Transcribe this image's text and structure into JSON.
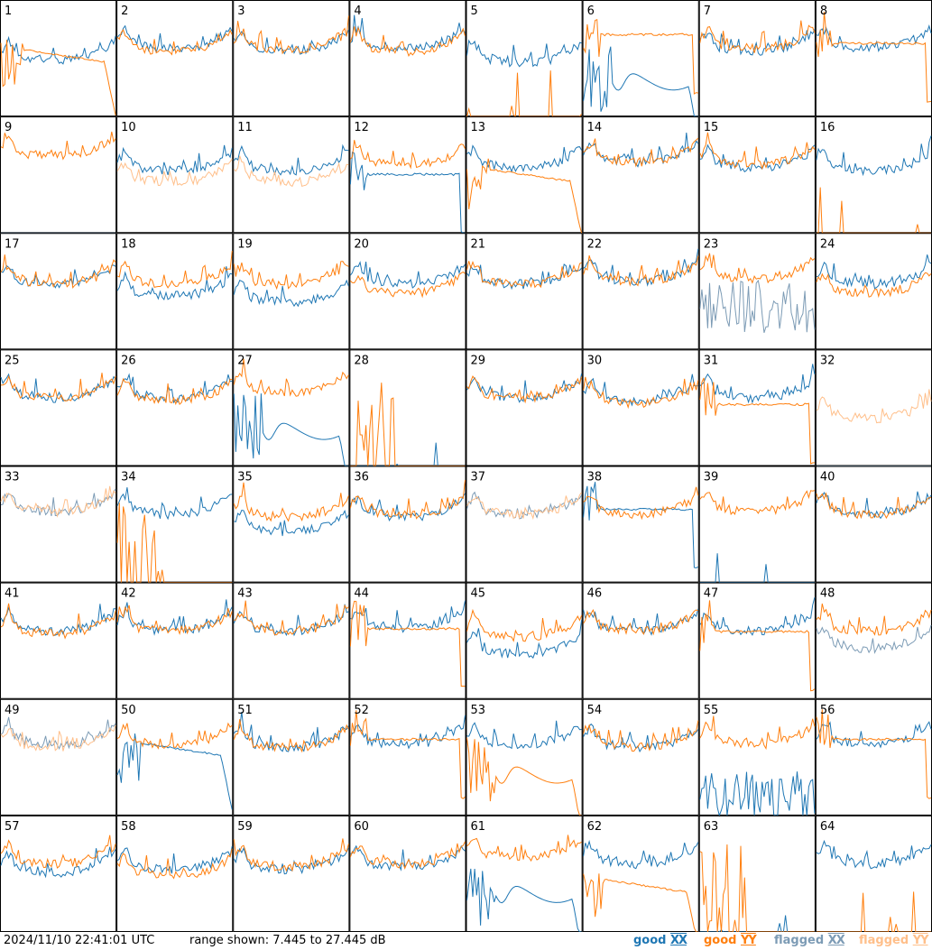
{
  "footer": {
    "timestamp": "2024/11/10 22:41:01 UTC",
    "range": "range shown: 7.445 to 27.445 dB"
  },
  "legend": [
    {
      "label": "good",
      "pol": "XX",
      "color": "#1f77b4"
    },
    {
      "label": "good",
      "pol": "YY",
      "color": "#ff7f0e"
    },
    {
      "label": "flagged",
      "pol": "XX",
      "color": "#7c9bb5"
    },
    {
      "label": "flagged",
      "pol": "YY",
      "color": "#ffbf8a"
    }
  ],
  "colors": {
    "good_xx": "#1f77b4",
    "good_yy": "#ff7f0e",
    "flagged_xx": "#7c9bb5",
    "flagged_yy": "#ffbf8a",
    "grid": "#000000"
  },
  "chart_data": {
    "type": "line",
    "xlabel": "",
    "ylabel": "",
    "ylim_db": [
      7.445,
      27.445
    ],
    "layout": "8x8 small multiples",
    "x_points": 60,
    "x_note": "channel index 0-59 (no axis labels printed)",
    "panels": [
      {
        "id": 1,
        "xx": {
          "s": "standard",
          "level": 18.5
        },
        "yy": {
          "s": "decay",
          "level": 16.5,
          "flagged": false
        }
      },
      {
        "id": 2,
        "xx": {
          "s": "standard",
          "level": 20.5
        },
        "yy": {
          "s": "standard",
          "level": 20.0
        }
      },
      {
        "id": 3,
        "xx": {
          "s": "standard",
          "level": 20.0
        },
        "yy": {
          "s": "standard",
          "level": 20.2
        }
      },
      {
        "id": 4,
        "xx": {
          "s": "standard",
          "level": 20.5
        },
        "yy": {
          "s": "standard",
          "level": 20.0
        }
      },
      {
        "id": 5,
        "xx": {
          "s": "standard",
          "level": 18.0
        },
        "yy": {
          "s": "dead",
          "level": 7.5
        }
      },
      {
        "id": 6,
        "xx": {
          "s": "dip",
          "level": 14.0
        },
        "yy": {
          "s": "flat",
          "level": 21.5
        }
      },
      {
        "id": 7,
        "xx": {
          "s": "standard",
          "level": 20.0
        },
        "yy": {
          "s": "standard",
          "level": 20.5
        }
      },
      {
        "id": 8,
        "xx": {
          "s": "standard",
          "level": 20.5
        },
        "yy": {
          "s": "flat",
          "level": 20.0
        }
      },
      {
        "id": 9,
        "xx": {
          "s": "dead",
          "level": 7.5,
          "flagged": true
        },
        "yy": {
          "s": "standard",
          "level": 22.0
        }
      },
      {
        "id": 10,
        "xx": {
          "s": "standard",
          "level": 19.5
        },
        "yy": {
          "s": "standard",
          "level": 17.5,
          "flagged": true
        }
      },
      {
        "id": 11,
        "xx": {
          "s": "standard",
          "level": 19.5
        },
        "yy": {
          "s": "standard",
          "level": 17.5,
          "flagged": true
        }
      },
      {
        "id": 12,
        "xx": {
          "s": "flat",
          "level": 17.5
        },
        "yy": {
          "s": "standard",
          "level": 20.5
        }
      },
      {
        "id": 13,
        "xx": {
          "s": "standard",
          "level": 20.0
        },
        "yy": {
          "s": "decay",
          "level": 16.0
        }
      },
      {
        "id": 14,
        "xx": {
          "s": "standard",
          "level": 21.0
        },
        "yy": {
          "s": "standard",
          "level": 21.0
        }
      },
      {
        "id": 15,
        "xx": {
          "s": "standard",
          "level": 20.0
        },
        "yy": {
          "s": "standard",
          "level": 20.5
        }
      },
      {
        "id": 16,
        "xx": {
          "s": "standard",
          "level": 19.5
        },
        "yy": {
          "s": "dead",
          "level": 7.5
        }
      },
      {
        "id": 17,
        "xx": {
          "s": "standard",
          "level": 20.0
        },
        "yy": {
          "s": "standard",
          "level": 20.0
        }
      },
      {
        "id": 18,
        "xx": {
          "s": "standard",
          "level": 18.0
        },
        "yy": {
          "s": "standard",
          "level": 20.0
        }
      },
      {
        "id": 19,
        "xx": {
          "s": "standard",
          "level": 17.0
        },
        "yy": {
          "s": "standard",
          "level": 20.0
        }
      },
      {
        "id": 20,
        "xx": {
          "s": "standard",
          "level": 20.0
        },
        "yy": {
          "s": "standard",
          "level": 18.5
        }
      },
      {
        "id": 21,
        "xx": {
          "s": "standard",
          "level": 20.0
        },
        "yy": {
          "s": "standard",
          "level": 20.0
        }
      },
      {
        "id": 22,
        "xx": {
          "s": "standard",
          "level": 20.5
        },
        "yy": {
          "s": "standard",
          "level": 20.5
        }
      },
      {
        "id": 23,
        "xx": {
          "s": "noisy",
          "level": 13.0,
          "flagged": true
        },
        "yy": {
          "s": "standard",
          "level": 21.0
        }
      },
      {
        "id": 24,
        "xx": {
          "s": "standard",
          "level": 20.0
        },
        "yy": {
          "s": "standard",
          "level": 18.5
        }
      },
      {
        "id": 25,
        "xx": {
          "s": "standard",
          "level": 20.5
        },
        "yy": {
          "s": "standard",
          "level": 20.5
        }
      },
      {
        "id": 26,
        "xx": {
          "s": "standard",
          "level": 20.5
        },
        "yy": {
          "s": "standard",
          "level": 20.0
        }
      },
      {
        "id": 27,
        "xx": {
          "s": "dip",
          "level": 14.0
        },
        "yy": {
          "s": "standard",
          "level": 21.5
        }
      },
      {
        "id": 28,
        "xx": {
          "s": "dead",
          "level": 7.5
        },
        "yy": {
          "s": "spiky",
          "level": 10.0
        }
      },
      {
        "id": 29,
        "xx": {
          "s": "standard",
          "level": 20.5
        },
        "yy": {
          "s": "standard",
          "level": 20.5
        }
      },
      {
        "id": 30,
        "xx": {
          "s": "standard",
          "level": 20.0
        },
        "yy": {
          "s": "standard",
          "level": 19.5
        }
      },
      {
        "id": 31,
        "xx": {
          "s": "standard",
          "level": 20.5
        },
        "yy": {
          "s": "flat",
          "level": 18.0
        }
      },
      {
        "id": 32,
        "xx": {
          "s": "dead",
          "level": 7.5,
          "flagged": true
        },
        "yy": {
          "s": "standard",
          "level": 17.0,
          "flagged": true
        }
      },
      {
        "id": 33,
        "xx": {
          "s": "standard",
          "level": 21.0,
          "flagged": true
        },
        "yy": {
          "s": "standard",
          "level": 21.0,
          "flagged": true
        }
      },
      {
        "id": 34,
        "xx": {
          "s": "standard",
          "level": 20.5
        },
        "yy": {
          "s": "spiky",
          "level": 9.0
        }
      },
      {
        "id": 35,
        "xx": {
          "s": "standard",
          "level": 17.5
        },
        "yy": {
          "s": "standard",
          "level": 20.0
        }
      },
      {
        "id": 36,
        "xx": {
          "s": "standard",
          "level": 20.0
        },
        "yy": {
          "s": "standard",
          "level": 20.5
        }
      },
      {
        "id": 37,
        "xx": {
          "s": "standard",
          "level": 20.5,
          "flagged": true
        },
        "yy": {
          "s": "standard",
          "level": 20.5,
          "flagged": true
        }
      },
      {
        "id": 38,
        "xx": {
          "s": "flat",
          "level": 20.0
        },
        "yy": {
          "s": "standard",
          "level": 20.5
        }
      },
      {
        "id": 39,
        "xx": {
          "s": "dead",
          "level": 7.5
        },
        "yy": {
          "s": "standard",
          "level": 21.0
        }
      },
      {
        "id": 40,
        "xx": {
          "s": "standard",
          "level": 20.5
        },
        "yy": {
          "s": "standard",
          "level": 20.5
        }
      },
      {
        "id": 41,
        "xx": {
          "s": "standard",
          "level": 20.5
        },
        "yy": {
          "s": "standard",
          "level": 20.0
        }
      },
      {
        "id": 42,
        "xx": {
          "s": "standard",
          "level": 20.5
        },
        "yy": {
          "s": "standard",
          "level": 20.5
        }
      },
      {
        "id": 43,
        "xx": {
          "s": "standard",
          "level": 20.5
        },
        "yy": {
          "s": "standard",
          "level": 20.5
        }
      },
      {
        "id": 44,
        "xx": {
          "s": "standard",
          "level": 21.0
        },
        "yy": {
          "s": "flat",
          "level": 19.5
        }
      },
      {
        "id": 45,
        "xx": {
          "s": "standard",
          "level": 16.5
        },
        "yy": {
          "s": "standard",
          "level": 19.5
        }
      },
      {
        "id": 46,
        "xx": {
          "s": "standard",
          "level": 20.5
        },
        "yy": {
          "s": "standard",
          "level": 20.5
        }
      },
      {
        "id": 47,
        "xx": {
          "s": "standard",
          "level": 20.5
        },
        "yy": {
          "s": "flat",
          "level": 19.0
        }
      },
      {
        "id": 48,
        "xx": {
          "s": "standard",
          "level": 17.5,
          "flagged": true
        },
        "yy": {
          "s": "standard",
          "level": 20.5
        }
      },
      {
        "id": 49,
        "xx": {
          "s": "standard",
          "level": 21.0,
          "flagged": true
        },
        "yy": {
          "s": "standard",
          "level": 20.5,
          "flagged": true
        }
      },
      {
        "id": 50,
        "xx": {
          "s": "decay",
          "level": 17.5
        },
        "yy": {
          "s": "standard",
          "level": 21.0
        }
      },
      {
        "id": 51,
        "xx": {
          "s": "standard",
          "level": 20.5
        },
        "yy": {
          "s": "standard",
          "level": 20.5
        }
      },
      {
        "id": 52,
        "xx": {
          "s": "standard",
          "level": 21.0
        },
        "yy": {
          "s": "flat",
          "level": 20.5
        }
      },
      {
        "id": 53,
        "xx": {
          "s": "standard",
          "level": 21.0
        },
        "yy": {
          "s": "dip",
          "level": 15.0
        }
      },
      {
        "id": 54,
        "xx": {
          "s": "standard",
          "level": 20.5
        },
        "yy": {
          "s": "standard",
          "level": 20.5
        }
      },
      {
        "id": 55,
        "xx": {
          "s": "noisy",
          "level": 9.0
        },
        "yy": {
          "s": "standard",
          "level": 21.0
        }
      },
      {
        "id": 56,
        "xx": {
          "s": "standard",
          "level": 21.0
        },
        "yy": {
          "s": "flat",
          "level": 20.5
        }
      },
      {
        "id": 57,
        "xx": {
          "s": "standard",
          "level": 19.0
        },
        "yy": {
          "s": "standard",
          "level": 20.5
        }
      },
      {
        "id": 58,
        "xx": {
          "s": "standard",
          "level": 19.5
        },
        "yy": {
          "s": "standard",
          "level": 18.5
        }
      },
      {
        "id": 59,
        "xx": {
          "s": "standard",
          "level": 19.5
        },
        "yy": {
          "s": "standard",
          "level": 20.0
        }
      },
      {
        "id": 60,
        "xx": {
          "s": "standard",
          "level": 20.0
        },
        "yy": {
          "s": "standard",
          "level": 20.5
        }
      },
      {
        "id": 61,
        "xx": {
          "s": "dip",
          "level": 14.5
        },
        "yy": {
          "s": "standard",
          "level": 21.5
        }
      },
      {
        "id": 62,
        "xx": {
          "s": "standard",
          "level": 20.5
        },
        "yy": {
          "s": "decay",
          "level": 14.0
        }
      },
      {
        "id": 63,
        "xx": {
          "s": "dead",
          "level": 7.5
        },
        "yy": {
          "s": "spiky",
          "level": 9.0
        }
      },
      {
        "id": 64,
        "xx": {
          "s": "standard",
          "level": 20.5
        },
        "yy": {
          "s": "dead",
          "level": 7.5
        }
      }
    ]
  }
}
